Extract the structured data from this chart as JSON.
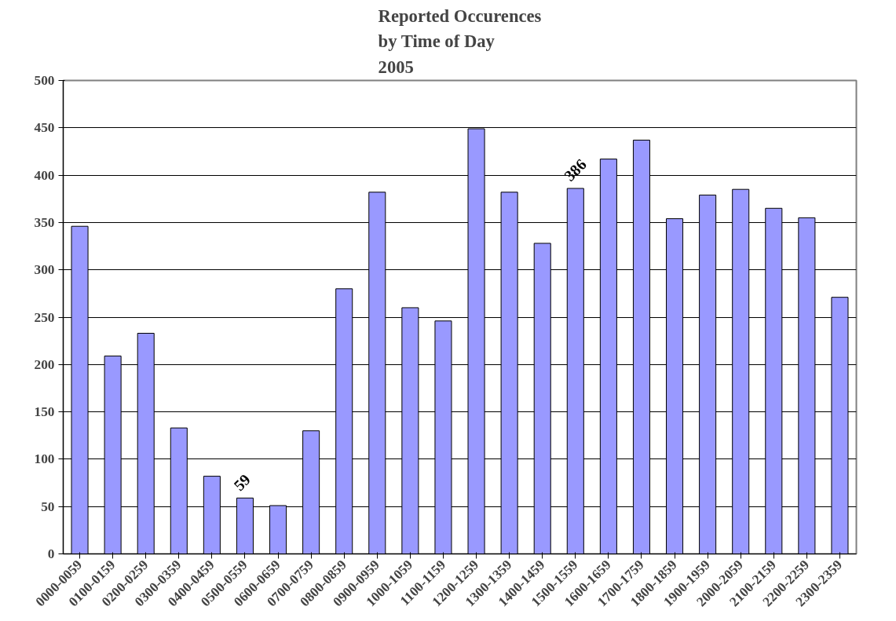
{
  "chart_data": {
    "type": "bar",
    "title": "Reported Occurences\nby Time of Day\n2005",
    "categories": [
      "0000-0059",
      "0100-0159",
      "0200-0259",
      "0300-0359",
      "0400-0459",
      "0500-0559",
      "0600-0659",
      "0700-0759",
      "0800-0859",
      "0900-0959",
      "1000-1059",
      "1100-1159",
      "1200-1259",
      "1300-1359",
      "1400-1459",
      "1500-1559",
      "1600-1659",
      "1700-1759",
      "1800-1859",
      "1900-1959",
      "2000-2059",
      "2100-2159",
      "2200-2259",
      "2300-2359"
    ],
    "values": [
      346,
      209,
      233,
      133,
      82,
      59,
      51,
      130,
      280,
      382,
      260,
      246,
      449,
      382,
      328,
      386,
      417,
      437,
      354,
      379,
      385,
      365,
      355,
      271
    ],
    "value_labels": [
      null,
      null,
      null,
      null,
      null,
      "59",
      null,
      null,
      null,
      null,
      null,
      null,
      null,
      null,
      null,
      "386",
      null,
      null,
      null,
      null,
      null,
      null,
      null,
      null
    ],
    "color": "#9999ff",
    "ylim": [
      0,
      500
    ],
    "yticks": [
      0,
      50,
      100,
      150,
      200,
      250,
      300,
      350,
      400,
      450,
      500
    ],
    "grid": "y"
  }
}
